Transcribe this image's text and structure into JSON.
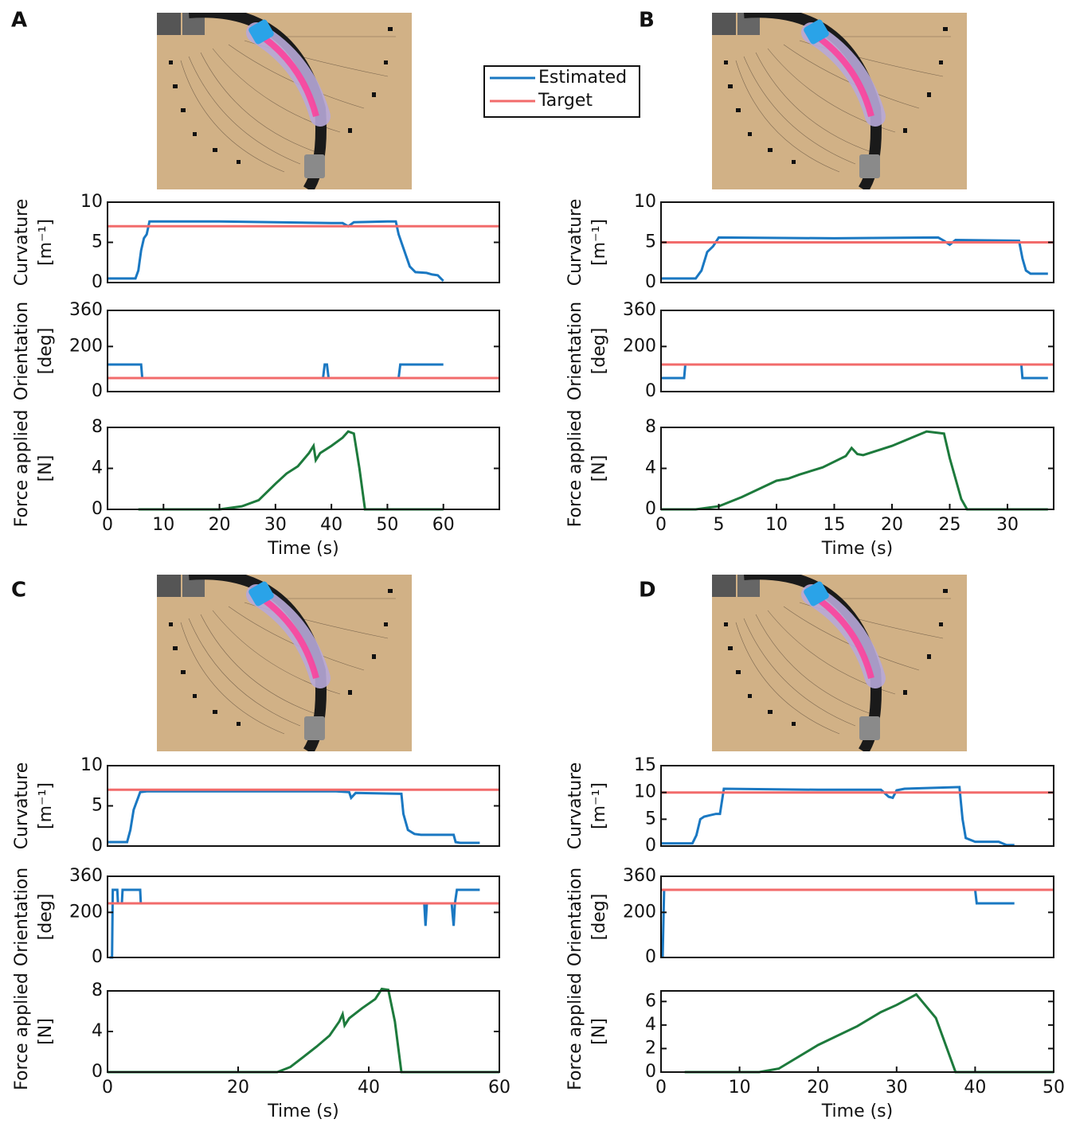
{
  "panel_labels": [
    "A",
    "B",
    "C",
    "D"
  ],
  "chart_data": [
    {
      "type": "line",
      "ylabel": [
        "Curvature",
        "[m⁻¹]"
      ],
      "xlim": [
        0,
        70
      ],
      "ylim": [
        0,
        10
      ],
      "yticks": [
        0,
        5,
        10
      ],
      "series": [
        {
          "name": "Estimated",
          "color": "#1a78c2",
          "x": [
            0,
            5,
            5.5,
            6,
            6.5,
            7,
            7.5,
            8,
            20,
            40,
            42,
            43,
            44,
            50,
            51.5,
            52,
            53,
            54,
            55,
            57,
            58,
            59,
            60
          ],
          "values": [
            0.5,
            0.5,
            1.5,
            4,
            5.5,
            6,
            7.6,
            7.6,
            7.6,
            7.4,
            7.4,
            7.0,
            7.5,
            7.6,
            7.6,
            6,
            4,
            2,
            1.3,
            1.2,
            1.0,
            0.9,
            0.2
          ]
        },
        {
          "name": "Target",
          "color": "#f26b6b",
          "x": [
            0,
            70
          ],
          "values": [
            7,
            7
          ]
        }
      ]
    },
    {
      "type": "line",
      "ylabel": [
        "Orientation",
        "[deg]"
      ],
      "xlim": [
        0,
        70
      ],
      "ylim": [
        0,
        360
      ],
      "yticks": [
        0,
        200,
        360
      ],
      "series": [
        {
          "name": "Estimated",
          "color": "#1a78c2",
          "x": [
            0,
            6,
            6.2,
            38.5,
            38.8,
            39.2,
            39.5,
            52,
            52.3,
            60
          ],
          "values": [
            120,
            120,
            60,
            60,
            120,
            120,
            60,
            60,
            120,
            120
          ]
        },
        {
          "name": "Target",
          "color": "#f26b6b",
          "x": [
            0,
            70
          ],
          "values": [
            60,
            60
          ]
        }
      ]
    },
    {
      "type": "line",
      "ylabel": [
        "Force applied",
        "[N]"
      ],
      "xlabel": "Time (s)",
      "xlim": [
        0,
        70
      ],
      "ylim": [
        0,
        8
      ],
      "yticks": [
        0,
        4,
        8
      ],
      "xticks": [
        0,
        10,
        20,
        30,
        40,
        50,
        60
      ],
      "color": "#1d7a3c",
      "x": [
        5.5,
        20,
        24,
        27,
        30,
        32,
        34,
        36,
        36.8,
        37.2,
        38,
        40,
        42,
        43,
        44,
        45,
        46,
        47,
        60
      ],
      "values": [
        0,
        0,
        0.3,
        0.9,
        2.5,
        3.5,
        4.2,
        5.5,
        6.2,
        4.8,
        5.5,
        6.2,
        7.0,
        7.6,
        7.4,
        4,
        0,
        0,
        0
      ]
    },
    {
      "type": "line",
      "ylabel": [
        "Curvature",
        "[m⁻¹]"
      ],
      "xlim": [
        0,
        34
      ],
      "ylim": [
        0,
        10
      ],
      "yticks": [
        0,
        5,
        10
      ],
      "series": [
        {
          "name": "Estimated",
          "color": "#1a78c2",
          "x": [
            0,
            3,
            3.5,
            4,
            4.5,
            5,
            15,
            24,
            24.5,
            25,
            25.5,
            31,
            31.3,
            31.6,
            32,
            33.5
          ],
          "values": [
            0.5,
            0.5,
            1.5,
            3.8,
            4.5,
            5.6,
            5.5,
            5.6,
            5.2,
            4.7,
            5.3,
            5.2,
            3,
            1.5,
            1.1,
            1.1
          ]
        },
        {
          "name": "Target",
          "color": "#f26b6b",
          "x": [
            0,
            34
          ],
          "values": [
            5,
            5
          ]
        }
      ]
    },
    {
      "type": "line",
      "ylabel": [
        "Orientation",
        "[deg]"
      ],
      "xlim": [
        0,
        34
      ],
      "ylim": [
        0,
        360
      ],
      "yticks": [
        0,
        200,
        360
      ],
      "series": [
        {
          "name": "Estimated",
          "color": "#1a78c2",
          "x": [
            0,
            2,
            2.1,
            31.2,
            31.3,
            33.5
          ],
          "values": [
            60,
            60,
            120,
            120,
            60,
            60
          ]
        },
        {
          "name": "Target",
          "color": "#f26b6b",
          "x": [
            0,
            34
          ],
          "values": [
            120,
            120
          ]
        }
      ]
    },
    {
      "type": "line",
      "ylabel": [
        "Force applied",
        "[N]"
      ],
      "xlabel": "Time (s)",
      "xlim": [
        0,
        34
      ],
      "ylim": [
        0,
        8
      ],
      "yticks": [
        0,
        4,
        8
      ],
      "xticks": [
        0,
        5,
        10,
        15,
        20,
        25,
        30
      ],
      "color": "#1d7a3c",
      "x": [
        0,
        3,
        5,
        7,
        10,
        11,
        12,
        14,
        16,
        16.5,
        17,
        17.5,
        20,
        23,
        24.5,
        25,
        26,
        26.5,
        33.5
      ],
      "values": [
        0,
        0,
        0.3,
        1.2,
        2.8,
        3,
        3.4,
        4.1,
        5.2,
        6.0,
        5.4,
        5.3,
        6.2,
        7.6,
        7.4,
        5,
        1,
        0,
        0
      ]
    },
    {
      "type": "line",
      "ylabel": [
        "Curvature",
        "[m⁻¹]"
      ],
      "xlim": [
        0,
        60
      ],
      "ylim": [
        0,
        10
      ],
      "yticks": [
        0,
        5,
        10
      ],
      "series": [
        {
          "name": "Estimated",
          "color": "#1a78c2",
          "x": [
            0,
            3,
            3.5,
            4,
            5,
            6,
            35,
            37,
            37.3,
            38,
            45,
            45.3,
            46,
            47,
            48,
            49,
            53,
            53.3,
            54,
            57
          ],
          "values": [
            0.5,
            0.5,
            2,
            4.5,
            6.7,
            6.8,
            6.8,
            6.7,
            6,
            6.6,
            6.5,
            4,
            2,
            1.5,
            1.4,
            1.4,
            1.4,
            0.5,
            0.4,
            0.4
          ]
        },
        {
          "name": "Target",
          "color": "#f26b6b",
          "x": [
            0,
            60
          ],
          "values": [
            7,
            7
          ]
        }
      ]
    },
    {
      "type": "line",
      "ylabel": [
        "Orientation",
        "[deg]"
      ],
      "xlim": [
        0,
        60
      ],
      "ylim": [
        0,
        360
      ],
      "yticks": [
        0,
        200,
        360
      ],
      "series": [
        {
          "name": "Estimated",
          "color": "#1a78c2",
          "x": [
            0.3,
            0.7,
            0.8,
            1.5,
            1.6,
            2.2,
            2.3,
            5,
            5.1,
            48.5,
            48.7,
            48.9,
            52.7,
            53,
            53.2,
            53.5,
            57
          ],
          "values": [
            0,
            0,
            300,
            300,
            240,
            240,
            300,
            300,
            240,
            240,
            140,
            240,
            240,
            140,
            240,
            300,
            300
          ]
        },
        {
          "name": "Target",
          "color": "#f26b6b",
          "x": [
            0,
            60
          ],
          "values": [
            240,
            240
          ]
        }
      ]
    },
    {
      "type": "line",
      "ylabel": [
        "Force applied",
        "[N]"
      ],
      "xlabel": "Time (s)",
      "xlim": [
        0,
        60
      ],
      "ylim": [
        0,
        8
      ],
      "yticks": [
        0,
        4,
        8
      ],
      "xticks": [
        0,
        20,
        40,
        60
      ],
      "color": "#1d7a3c",
      "x": [
        0,
        26,
        28,
        30,
        32,
        34,
        35.5,
        36,
        36.3,
        37,
        39,
        41,
        42,
        43,
        44,
        45,
        46,
        60
      ],
      "values": [
        0,
        0,
        0.5,
        1.5,
        2.5,
        3.6,
        5.0,
        5.7,
        4.6,
        5.3,
        6.3,
        7.2,
        8.2,
        8.1,
        5,
        0,
        0,
        0
      ]
    },
    {
      "type": "line",
      "ylabel": [
        "Curvature",
        "[m⁻¹]"
      ],
      "xlim": [
        0,
        50
      ],
      "ylim": [
        0,
        15
      ],
      "yticks": [
        0,
        5,
        10,
        15
      ],
      "series": [
        {
          "name": "Estimated",
          "color": "#1a78c2",
          "x": [
            0,
            4,
            4.5,
            5,
            5.5,
            7,
            7.5,
            8,
            20,
            28,
            29,
            29.5,
            30,
            31,
            38,
            38.4,
            38.8,
            40,
            43,
            44,
            45
          ],
          "values": [
            0.5,
            0.5,
            2,
            5,
            5.5,
            6,
            6,
            10.7,
            10.5,
            10.5,
            9.2,
            9,
            10.4,
            10.7,
            11,
            5,
            1.5,
            0.8,
            0.8,
            0.2,
            0.2
          ]
        },
        {
          "name": "Target",
          "color": "#f26b6b",
          "x": [
            0,
            50
          ],
          "values": [
            10,
            10
          ]
        }
      ]
    },
    {
      "type": "line",
      "ylabel": [
        "Orientation",
        "[deg]"
      ],
      "xlim": [
        0,
        50
      ],
      "ylim": [
        0,
        360
      ],
      "yticks": [
        0,
        200,
        360
      ],
      "series": [
        {
          "name": "Estimated",
          "color": "#1a78c2",
          "x": [
            0.2,
            0.4,
            40,
            40.2,
            45
          ],
          "values": [
            0,
            300,
            300,
            240,
            240
          ]
        },
        {
          "name": "Target",
          "color": "#f26b6b",
          "x": [
            0,
            50
          ],
          "values": [
            300,
            300
          ]
        }
      ]
    },
    {
      "type": "line",
      "ylabel": [
        "Force applied",
        "[N]"
      ],
      "xlabel": "Time (s)",
      "xlim": [
        0,
        50
      ],
      "ylim": [
        0,
        6.9
      ],
      "yticks": [
        0,
        2,
        4,
        6
      ],
      "xticks": [
        0,
        10,
        20,
        30,
        40,
        50
      ],
      "color": "#1d7a3c",
      "x": [
        3,
        12.5,
        15,
        20,
        25,
        28,
        30,
        32.5,
        35,
        37.5,
        50
      ],
      "values": [
        0,
        0,
        0.3,
        2.3,
        3.9,
        5.1,
        5.7,
        6.6,
        4.6,
        0,
        0
      ]
    }
  ]
}
